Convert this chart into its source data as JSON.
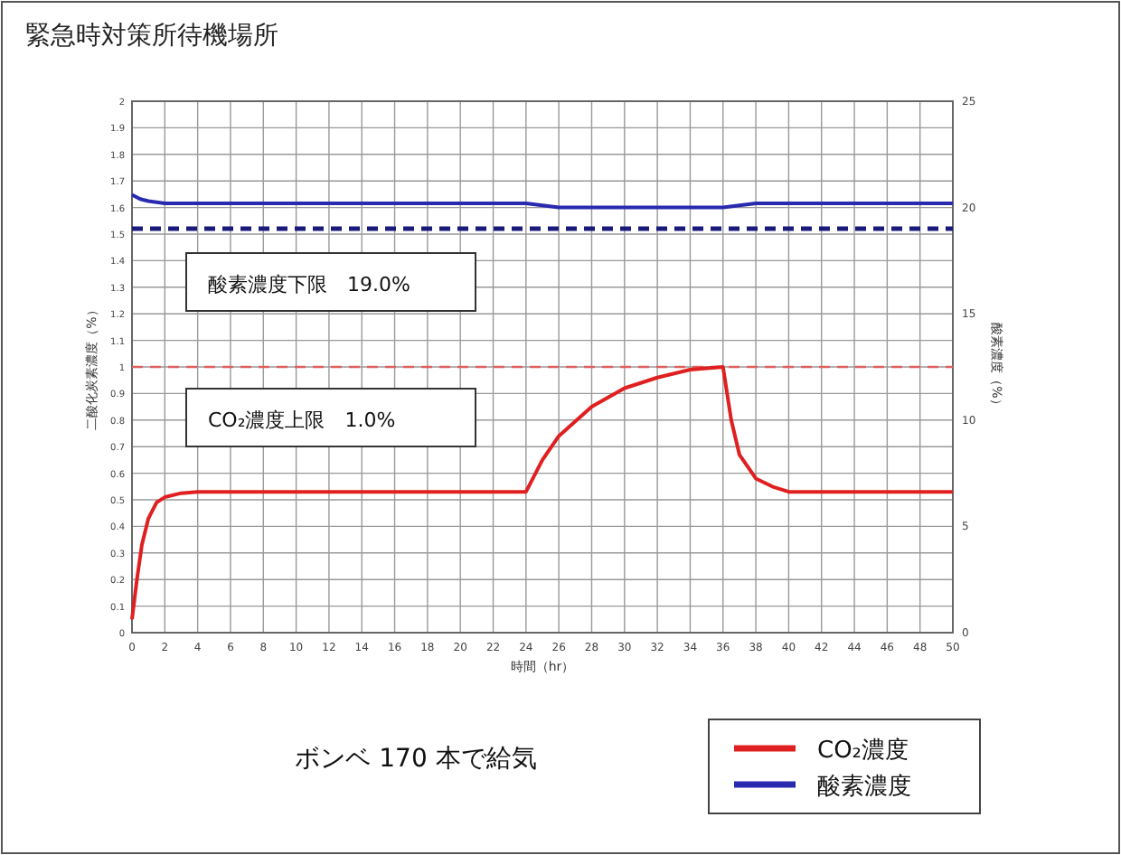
{
  "chart_data": {
    "type": "line",
    "title": "緊急時対策所待機場所",
    "xlabel": "時間（hr）",
    "ylabel": "二酸化炭素濃度（%）",
    "y2label": "酸素濃度（%）",
    "x": [
      0,
      0.3,
      0.6,
      1,
      1.5,
      2,
      3,
      4,
      24,
      25,
      26,
      28,
      30,
      32,
      34,
      36,
      36.5,
      37,
      38,
      39,
      40,
      50
    ],
    "series": [
      {
        "name": "CO₂濃度",
        "color": "#e02020",
        "values": [
          0.05,
          0.2,
          0.33,
          0.43,
          0.49,
          0.51,
          0.525,
          0.53,
          0.53,
          0.65,
          0.74,
          0.85,
          0.92,
          0.96,
          0.99,
          1.0,
          0.8,
          0.67,
          0.58,
          0.55,
          0.53,
          0.53
        ]
      },
      {
        "name": "酸素濃度",
        "color": "#2a2ab0",
        "axis": "y2",
        "x": [
          0,
          0.5,
          1,
          2,
          24,
          25,
          26,
          36,
          37,
          38,
          50
        ],
        "values": [
          20.6,
          20.4,
          20.3,
          20.2,
          20.2,
          20.1,
          20.0,
          20.0,
          20.1,
          20.2,
          20.2
        ]
      }
    ],
    "xlim": [
      0,
      50
    ],
    "xticks": [
      0,
      2,
      4,
      6,
      8,
      10,
      12,
      14,
      16,
      18,
      20,
      22,
      24,
      26,
      28,
      30,
      32,
      34,
      36,
      38,
      40,
      42,
      44,
      46,
      48,
      50
    ],
    "ylim": [
      0,
      2
    ],
    "yticks": [
      0,
      0.1,
      0.2,
      0.3,
      0.4,
      0.5,
      0.6,
      0.7,
      0.8,
      0.9,
      1,
      1.1,
      1.2,
      1.3,
      1.4,
      1.5,
      1.6,
      1.7,
      1.8,
      1.9,
      2
    ],
    "y2lim": [
      0,
      25
    ],
    "y2ticks": [
      0,
      5,
      10,
      15,
      20,
      25
    ],
    "ref_lines": [
      {
        "axis": "y2",
        "value": 19.0,
        "label": "酸素濃度下限　19.0%",
        "color": "#1a1a7a",
        "line_style": "dashed"
      },
      {
        "axis": "y",
        "value": 1.0,
        "label": "CO₂濃度上限　1.0%",
        "color": "#e06060",
        "line_style": "dashed"
      }
    ],
    "annotations": [
      "ボンベ 170 本で給気"
    ],
    "grid": true,
    "legend": "bottom right",
    "marker": "none",
    "line_style": "solid"
  }
}
